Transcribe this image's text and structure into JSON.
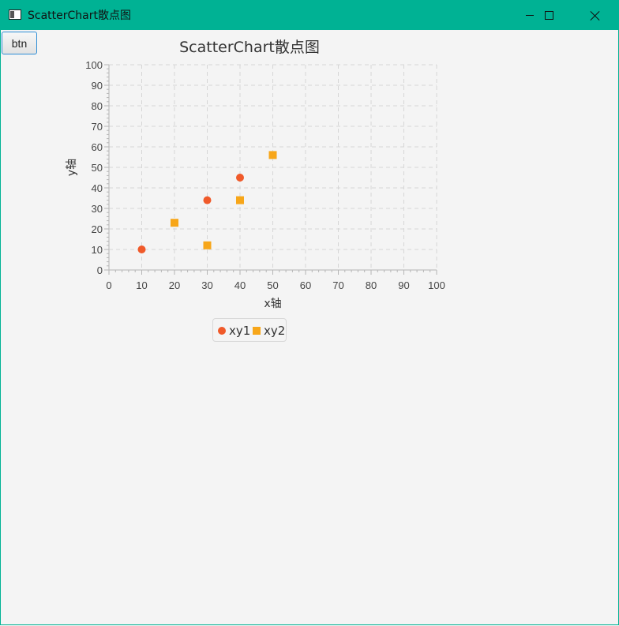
{
  "window": {
    "title": "ScatterChart散点图",
    "icon": "app-window-icon",
    "controls": [
      "minimize-icon",
      "maximize-icon",
      "close-icon"
    ]
  },
  "toolbar": {
    "button_label": "btn"
  },
  "colors": {
    "titlebar": "#00b294",
    "series1": "#f05a2a",
    "series2": "#f7a619"
  },
  "chart_data": {
    "type": "scatter",
    "title": "ScatterChart散点图",
    "xlabel": "x轴",
    "ylabel": "y轴",
    "xlim": [
      0,
      100
    ],
    "ylim": [
      0,
      100
    ],
    "x_ticks": [
      "0",
      "10",
      "20",
      "30",
      "40",
      "50",
      "60",
      "70",
      "80",
      "90",
      "100"
    ],
    "y_ticks": [
      "0",
      "10",
      "20",
      "30",
      "40",
      "50",
      "60",
      "70",
      "80",
      "90",
      "100"
    ],
    "grid": true,
    "legend_position": "bottom",
    "series": [
      {
        "name": "xy1",
        "marker": "circle",
        "x": [
          10,
          30,
          40
        ],
        "y": [
          10,
          34,
          45
        ]
      },
      {
        "name": "xy2",
        "marker": "square",
        "x": [
          20,
          30,
          40,
          50
        ],
        "y": [
          23,
          12,
          34,
          56
        ]
      }
    ]
  }
}
